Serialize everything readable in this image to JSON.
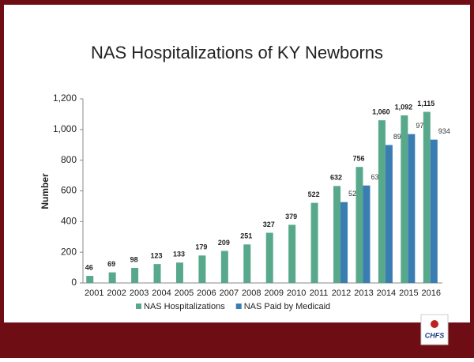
{
  "chart_data": {
    "type": "bar",
    "title": "NAS Hospitalizations of KY Newborns",
    "y_label": "Number",
    "categories": [
      "2001",
      "2002",
      "2003",
      "2004",
      "2005",
      "2006",
      "2007",
      "2008",
      "2009",
      "2010",
      "2011",
      "2012",
      "2013",
      "2014",
      "2015",
      "2016"
    ],
    "series": [
      {
        "name": "NAS Hospitalizations",
        "color": "#58a98c",
        "values": [
          46,
          69,
          98,
          123,
          133,
          179,
          209,
          251,
          327,
          379,
          522,
          632,
          756,
          1060,
          1092,
          1115
        ],
        "value_labels": [
          "46",
          "69",
          "98",
          "123",
          "133",
          "179",
          "209",
          "251",
          "327",
          "379",
          "522",
          "632",
          "756",
          "1,060",
          "1,092",
          "1,115"
        ]
      },
      {
        "name": "NAS Paid by Medicaid",
        "color": "#3a7db3",
        "values": [
          null,
          null,
          null,
          null,
          null,
          null,
          null,
          null,
          null,
          null,
          null,
          527,
          635,
          899,
          970,
          934
        ]
      }
    ],
    "ylim": [
      0,
      1200
    ],
    "yticks": [
      0,
      200,
      400,
      600,
      800,
      {
        "value": 1000,
        "label": "1,000"
      },
      {
        "value": 1200,
        "label": "1,200"
      }
    ],
    "grid": false,
    "legend": "bottom"
  },
  "logo": {
    "text": "CHFS"
  }
}
